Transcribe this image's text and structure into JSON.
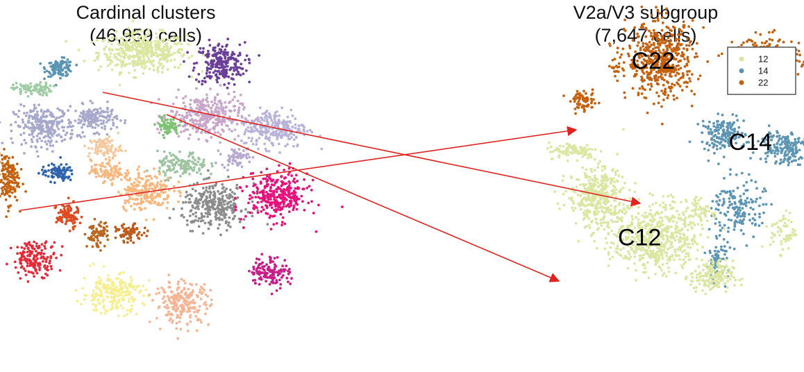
{
  "chart_data": [
    {
      "type": "scatter",
      "title": "Cardinal clusters",
      "subtitle": "(46,959 cells)",
      "clusters": [
        {
          "color": "#dbe6a0",
          "center": [
            5.2,
            8.2
          ],
          "spread": [
            1.6,
            0.9
          ],
          "n": 420
        },
        {
          "color": "#5b95b3",
          "center": [
            1.9,
            7.4
          ],
          "spread": [
            0.5,
            0.4
          ],
          "n": 110
        },
        {
          "color": "#6b3f98",
          "center": [
            8.3,
            7.6
          ],
          "spread": [
            0.9,
            1.0
          ],
          "n": 240
        },
        {
          "color": "#9fcda3",
          "center": [
            0.8,
            6.3
          ],
          "spread": [
            0.7,
            0.3
          ],
          "n": 90
        },
        {
          "color": "#a6a9cc",
          "center": [
            1.3,
            4.4
          ],
          "spread": [
            1.1,
            0.9
          ],
          "n": 260
        },
        {
          "color": "#a6a9cc",
          "center": [
            3.3,
            4.8
          ],
          "spread": [
            0.8,
            0.6
          ],
          "n": 150
        },
        {
          "color": "#c8a5c9",
          "center": [
            7.7,
            4.9
          ],
          "spread": [
            1.3,
            1.0
          ],
          "n": 330
        },
        {
          "color": "#b8b3d8",
          "center": [
            10.5,
            4.3
          ],
          "spread": [
            1.2,
            0.9
          ],
          "n": 260
        },
        {
          "color": "#7cc474",
          "center": [
            6.2,
            4.4
          ],
          "spread": [
            0.4,
            0.4
          ],
          "n": 70
        },
        {
          "color": "#b7a9d2",
          "center": [
            8.9,
            2.8
          ],
          "spread": [
            0.5,
            0.4
          ],
          "n": 60
        },
        {
          "color": "#f5c9a0",
          "center": [
            3.7,
            3.3
          ],
          "spread": [
            0.6,
            0.5
          ],
          "n": 90
        },
        {
          "color": "#c4610f",
          "center": [
            -0.2,
            1.7
          ],
          "spread": [
            0.4,
            1.2
          ],
          "n": 150
        },
        {
          "color": "#2e64ac",
          "center": [
            1.8,
            2.0
          ],
          "spread": [
            0.6,
            0.4
          ],
          "n": 90
        },
        {
          "color": "#f9b77e",
          "center": [
            3.8,
            2.1
          ],
          "spread": [
            0.6,
            0.5
          ],
          "n": 100
        },
        {
          "color": "#f9b77e",
          "center": [
            5.3,
            1.1
          ],
          "spread": [
            1.0,
            0.9
          ],
          "n": 220
        },
        {
          "color": "#9cc49f",
          "center": [
            6.8,
            2.4
          ],
          "spread": [
            0.9,
            0.6
          ],
          "n": 130
        },
        {
          "color": "#8c8c8c",
          "center": [
            8.1,
            0.3
          ],
          "spread": [
            1.2,
            1.0
          ],
          "n": 300
        },
        {
          "color": "#e8107b",
          "center": [
            10.6,
            0.8
          ],
          "spread": [
            1.1,
            1.1
          ],
          "n": 320
        },
        {
          "color": "#de4a1f",
          "center": [
            2.2,
            -0.2
          ],
          "spread": [
            0.4,
            0.6
          ],
          "n": 90
        },
        {
          "color": "#b86620",
          "center": [
            3.4,
            -1.2
          ],
          "spread": [
            0.4,
            0.6
          ],
          "n": 70
        },
        {
          "color": "#bf5a1c",
          "center": [
            4.7,
            -1.1
          ],
          "spread": [
            0.5,
            0.4
          ],
          "n": 70
        },
        {
          "color": "#e32b3a",
          "center": [
            0.9,
            -2.4
          ],
          "spread": [
            0.8,
            0.8
          ],
          "n": 170
        },
        {
          "color": "#c81c86",
          "center": [
            10.3,
            -3.1
          ],
          "spread": [
            0.7,
            0.7
          ],
          "n": 130
        },
        {
          "color": "#f7ee8f",
          "center": [
            4.0,
            -4.2
          ],
          "spread": [
            1.1,
            0.9
          ],
          "n": 230
        },
        {
          "color": "#f6b595",
          "center": [
            6.8,
            -4.7
          ],
          "spread": [
            1.0,
            1.0
          ],
          "n": 220
        }
      ]
    },
    {
      "type": "scatter",
      "title": "V2a/V3 subgroup",
      "subtitle": "(7,647 cells)",
      "legend": {
        "placement": "top-right",
        "entries": [
          {
            "name": "12",
            "color": "#dbe6a0"
          },
          {
            "name": "14",
            "color": "#5b95b3"
          },
          {
            "name": "22",
            "color": "#c4610f"
          }
        ]
      },
      "labels": [
        {
          "text": "C22",
          "x": 8.6,
          "y": 8.2
        },
        {
          "text": "C14",
          "x": 13.6,
          "y": 3.7
        },
        {
          "text": "C12",
          "x": 7.9,
          "y": -1.6
        }
      ],
      "series": [
        {
          "name": "22",
          "color": "#c4610f",
          "blobs": [
            {
              "center": [
                9.0,
                8.2
              ],
              "spread": [
                1.6,
                1.9
              ],
              "n": 520
            },
            {
              "center": [
                14.5,
                8.3
              ],
              "spread": [
                1.5,
                1.1
              ],
              "n": 220
            },
            {
              "center": [
                5.0,
                5.9
              ],
              "spread": [
                0.6,
                0.5
              ],
              "n": 70
            },
            {
              "center": [
                6.7,
                7.8
              ],
              "spread": [
                0.3,
                0.3
              ],
              "n": 15
            }
          ]
        },
        {
          "name": "14",
          "color": "#5b95b3",
          "blobs": [
            {
              "center": [
                12.2,
                4.1
              ],
              "spread": [
                1.0,
                0.8
              ],
              "n": 160
            },
            {
              "center": [
                15.3,
                3.4
              ],
              "spread": [
                1.2,
                0.9
              ],
              "n": 170
            },
            {
              "center": [
                13.0,
                0.0
              ],
              "spread": [
                1.2,
                1.5
              ],
              "n": 160
            },
            {
              "center": [
                11.9,
                -2.8
              ],
              "spread": [
                0.5,
                1.0
              ],
              "n": 70
            }
          ]
        },
        {
          "name": "12",
          "color": "#dbe6a0",
          "blobs": [
            {
              "center": [
                5.7,
                0.6
              ],
              "spread": [
                1.3,
                1.6
              ],
              "n": 380
            },
            {
              "center": [
                8.7,
                -1.6
              ],
              "spread": [
                2.0,
                1.7
              ],
              "n": 560
            },
            {
              "center": [
                11.6,
                -3.8
              ],
              "spread": [
                1.0,
                0.8
              ],
              "n": 170
            },
            {
              "center": [
                15.3,
                -1.3
              ],
              "spread": [
                0.6,
                1.0
              ],
              "n": 60
            },
            {
              "center": [
                4.5,
                3.2
              ],
              "spread": [
                1.2,
                0.4
              ],
              "n": 90
            },
            {
              "center": [
                11.0,
                -0.2
              ],
              "spread": [
                0.8,
                0.8
              ],
              "n": 60
            }
          ]
        }
      ]
    }
  ],
  "arrows": [
    {
      "from": "left-cluster-14",
      "to": "C14"
    },
    {
      "from": "left-cluster-22",
      "to": "C22"
    },
    {
      "from": "left-cluster-12",
      "to": "C12"
    }
  ]
}
